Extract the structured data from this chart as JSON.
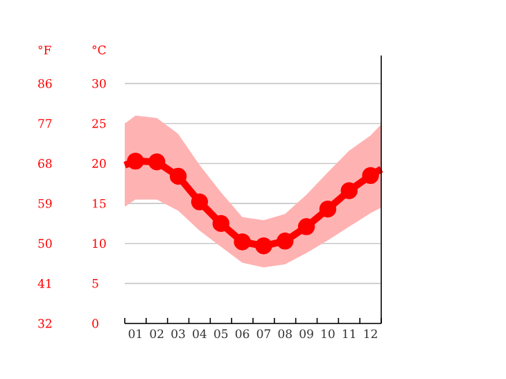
{
  "chart_data": {
    "type": "line",
    "ylabel": "°C",
    "y2label": "°F",
    "x": [
      0.5,
      1,
      2,
      3,
      4,
      5,
      6,
      7,
      8,
      9,
      10,
      11,
      12,
      12.5
    ],
    "xlim": [
      0.5,
      12.5
    ],
    "xticks": [
      {
        "value": 0.5,
        "label": null
      },
      {
        "value": 1,
        "label": "01"
      },
      {
        "value": 1.5,
        "label": null
      },
      {
        "value": 2,
        "label": "02"
      },
      {
        "value": 2.5,
        "label": null
      },
      {
        "value": 3,
        "label": "03"
      },
      {
        "value": 3.5,
        "label": null
      },
      {
        "value": 4,
        "label": "04"
      },
      {
        "value": 4.5,
        "label": null
      },
      {
        "value": 5,
        "label": "05"
      },
      {
        "value": 5.5,
        "label": null
      },
      {
        "value": 6,
        "label": "06"
      },
      {
        "value": 6.5,
        "label": null
      },
      {
        "value": 7,
        "label": "07"
      },
      {
        "value": 7.5,
        "label": null
      },
      {
        "value": 8,
        "label": "08"
      },
      {
        "value": 8.5,
        "label": null
      },
      {
        "value": 9,
        "label": "09"
      },
      {
        "value": 9.5,
        "label": null
      },
      {
        "value": 10,
        "label": "10"
      },
      {
        "value": 10.5,
        "label": null
      },
      {
        "value": 11,
        "label": "11"
      },
      {
        "value": 11.5,
        "label": null
      },
      {
        "value": 12,
        "label": "12"
      },
      {
        "value": 12.5,
        "label": null
      }
    ],
    "ylim": [
      0,
      33.5
    ],
    "yticks": [
      0,
      5,
      10,
      15,
      20,
      25,
      30
    ],
    "y2lim": [
      32,
      92.3
    ],
    "y2ticks": [
      32,
      41,
      50,
      59,
      68,
      77,
      86
    ],
    "series": [
      {
        "color": "#ff0000",
        "values": [
          19.8,
          20.3,
          20.2,
          18.4,
          15.2,
          12.5,
          10.2,
          9.7,
          10.3,
          12.1,
          14.3,
          16.6,
          18.5,
          19.3
        ],
        "lower": [
          14.6,
          15.5,
          15.5,
          14.1,
          11.6,
          9.6,
          7.6,
          7.0,
          7.4,
          8.8,
          10.4,
          12.1,
          13.8,
          14.5
        ],
        "upper": [
          25.0,
          26.0,
          25.7,
          23.7,
          19.8,
          16.4,
          13.3,
          12.9,
          13.7,
          16.1,
          18.9,
          21.6,
          23.5,
          24.9
        ]
      }
    ],
    "marker": "circle",
    "grid": "y"
  }
}
